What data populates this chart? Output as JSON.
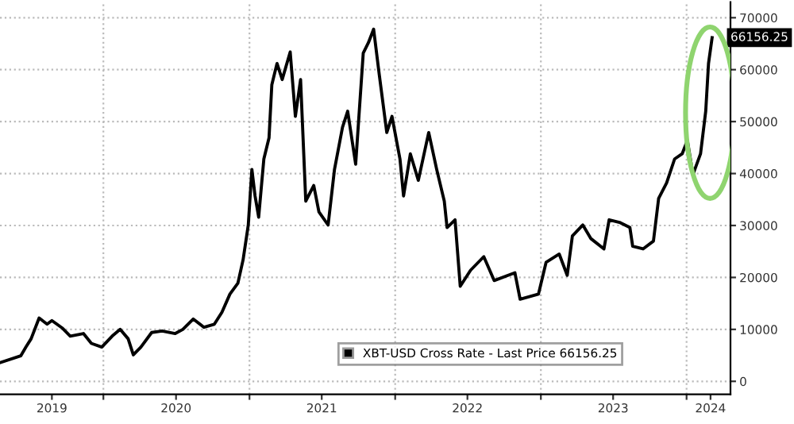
{
  "chart_data": {
    "type": "line",
    "x": [
      "2019-04-17",
      "2019-06-08",
      "2019-06-21",
      "2019-07-04",
      "2019-07-24",
      "2019-08-13",
      "2019-08-25",
      "2019-09-21",
      "2019-10-10",
      "2019-11-12",
      "2019-12-02",
      "2019-12-28",
      "2020-01-23",
      "2020-02-12",
      "2020-03-03",
      "2020-03-16",
      "2020-04-04",
      "2020-05-01",
      "2020-05-27",
      "2020-06-29",
      "2020-07-18",
      "2020-08-13",
      "2020-09-09",
      "2020-10-05",
      "2020-10-24",
      "2020-11-13",
      "2020-12-03",
      "2020-12-16",
      "2020-12-29",
      "2021-01-07",
      "2021-01-15",
      "2021-01-24",
      "2021-02-06",
      "2021-02-19",
      "2021-02-26",
      "2021-03-11",
      "2021-03-24",
      "2021-04-13",
      "2021-04-26",
      "2021-05-09",
      "2021-05-22",
      "2021-06-11",
      "2021-06-24",
      "2021-07-17",
      "2021-08-02",
      "2021-08-22",
      "2021-09-04",
      "2021-09-24",
      "2021-10-13",
      "2021-10-26",
      "2021-11-08",
      "2021-11-22",
      "2021-12-11",
      "2021-12-24",
      "2022-01-13",
      "2022-01-22",
      "2022-02-08",
      "2022-02-28",
      "2022-03-26",
      "2022-04-15",
      "2022-05-04",
      "2022-05-11",
      "2022-05-31",
      "2022-06-13",
      "2022-07-09",
      "2022-08-11",
      "2022-09-06",
      "2022-10-28",
      "2022-11-10",
      "2022-12-26",
      "2023-01-14",
      "2023-02-16",
      "2023-03-08",
      "2023-03-21",
      "2023-04-16",
      "2023-05-06",
      "2023-06-08",
      "2023-06-21",
      "2023-07-17",
      "2023-08-12",
      "2023-08-19",
      "2023-09-14",
      "2023-10-10",
      "2023-10-23",
      "2023-11-12",
      "2023-12-02",
      "2023-12-21",
      "2024-01-03",
      "2024-01-17",
      "2024-02-05",
      "2024-02-18",
      "2024-02-25",
      "2024-03-05"
    ],
    "series": [
      {
        "name": "XBT-USD Cross Rate - Last Price 66156.25",
        "color": "#000000",
        "values": [
          3600,
          4900,
          6600,
          8200,
          12200,
          11000,
          11700,
          10200,
          8700,
          9200,
          7300,
          6600,
          8700,
          10000,
          8200,
          5100,
          6600,
          9400,
          9700,
          9200,
          10000,
          12000,
          10400,
          11000,
          13300,
          16800,
          18900,
          23400,
          30100,
          40800,
          35700,
          31600,
          42800,
          46900,
          57100,
          61200,
          58100,
          63400,
          51000,
          58100,
          34700,
          37700,
          32600,
          30100,
          40800,
          48900,
          52000,
          41800,
          63200,
          65200,
          67800,
          59100,
          47900,
          51000,
          42800,
          35700,
          43800,
          38700,
          47900,
          40800,
          34700,
          29600,
          31100,
          18300,
          21400,
          24000,
          19400,
          20900,
          15800,
          16800,
          22900,
          24500,
          20400,
          28000,
          30100,
          27500,
          25500,
          31100,
          30600,
          29600,
          26000,
          25500,
          27000,
          35200,
          38200,
          42800,
          43800,
          46400,
          39800,
          43800,
          52000,
          61200,
          66156.25
        ]
      }
    ],
    "xlim": [
      "2019-04-17",
      "2024-04-20"
    ],
    "xticks": [
      {
        "value": "2020-01-01",
        "label": null
      },
      {
        "value": "2021-01-01",
        "label": null
      },
      {
        "value": "2022-01-01",
        "label": null
      },
      {
        "value": "2023-01-01",
        "label": null
      },
      {
        "value": "2024-01-01",
        "label": null
      },
      {
        "value": "2019-08-25",
        "label": "2019"
      },
      {
        "value": "2020-07-01",
        "label": "2020"
      },
      {
        "value": "2021-07-01",
        "label": "2021"
      },
      {
        "value": "2022-07-01",
        "label": "2022"
      },
      {
        "value": "2023-07-01",
        "label": "2023"
      },
      {
        "value": "2024-03-01",
        "label": "2024"
      }
    ],
    "ylim": [
      -2500,
      73000
    ],
    "yticks": [
      0,
      10000,
      20000,
      30000,
      40000,
      50000,
      60000,
      70000
    ],
    "annotations": [
      {
        "text": "66156.25",
        "x": "2024-03-05",
        "y": 66156.25
      }
    ],
    "grid": true,
    "legend": "bottom right",
    "line_style": "solid",
    "marker": "none"
  }
}
